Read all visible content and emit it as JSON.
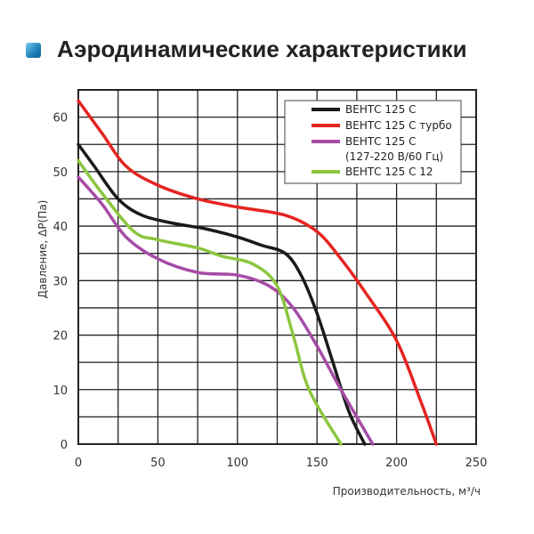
{
  "title": "Аэродинамические характеристики",
  "chart_data": {
    "type": "line",
    "xlabel": "Производительность, м³/ч",
    "ylabel": "Давление, ΔР(Па)",
    "xlim": [
      0,
      250
    ],
    "ylim": [
      0,
      65
    ],
    "xticks": [
      0,
      50,
      100,
      150,
      200,
      250
    ],
    "yticks": [
      0,
      10,
      20,
      30,
      40,
      50,
      60
    ],
    "grid": true,
    "legend": "top-right",
    "series": [
      {
        "name": "ВЕНТС 125 С",
        "color": "#1a1a1a",
        "points": [
          [
            0,
            55
          ],
          [
            10,
            51
          ],
          [
            25,
            45
          ],
          [
            40,
            42
          ],
          [
            60,
            40.5
          ],
          [
            80,
            39.5
          ],
          [
            100,
            38
          ],
          [
            115,
            36.5
          ],
          [
            130,
            35
          ],
          [
            140,
            31
          ],
          [
            150,
            24
          ],
          [
            160,
            15
          ],
          [
            170,
            6
          ],
          [
            180,
            0
          ]
        ]
      },
      {
        "name": "ВЕНТС 125 С турбо",
        "color": "#e52421",
        "points": [
          [
            0,
            63
          ],
          [
            15,
            57
          ],
          [
            30,
            51
          ],
          [
            50,
            47.5
          ],
          [
            75,
            45
          ],
          [
            100,
            43.5
          ],
          [
            130,
            42
          ],
          [
            150,
            39
          ],
          [
            165,
            34
          ],
          [
            180,
            28
          ],
          [
            200,
            19
          ],
          [
            215,
            8
          ],
          [
            225,
            0
          ]
        ]
      },
      {
        "name": "ВЕНТС 125 С",
        "name_line2": "(127-220 В/60 Гц)",
        "color": "#a64ca6",
        "points": [
          [
            0,
            49
          ],
          [
            15,
            44
          ],
          [
            30,
            38
          ],
          [
            50,
            34
          ],
          [
            75,
            31.5
          ],
          [
            100,
            31
          ],
          [
            120,
            29
          ],
          [
            135,
            25
          ],
          [
            150,
            18
          ],
          [
            165,
            10
          ],
          [
            185,
            0
          ]
        ]
      },
      {
        "name": "ВЕНТС 125 С 12",
        "color": "#8cc63f",
        "points": [
          [
            0,
            52
          ],
          [
            15,
            46
          ],
          [
            35,
            39
          ],
          [
            50,
            37.5
          ],
          [
            75,
            36
          ],
          [
            90,
            34.5
          ],
          [
            110,
            33
          ],
          [
            125,
            29
          ],
          [
            135,
            20
          ],
          [
            145,
            10
          ],
          [
            165,
            0
          ]
        ]
      }
    ]
  }
}
